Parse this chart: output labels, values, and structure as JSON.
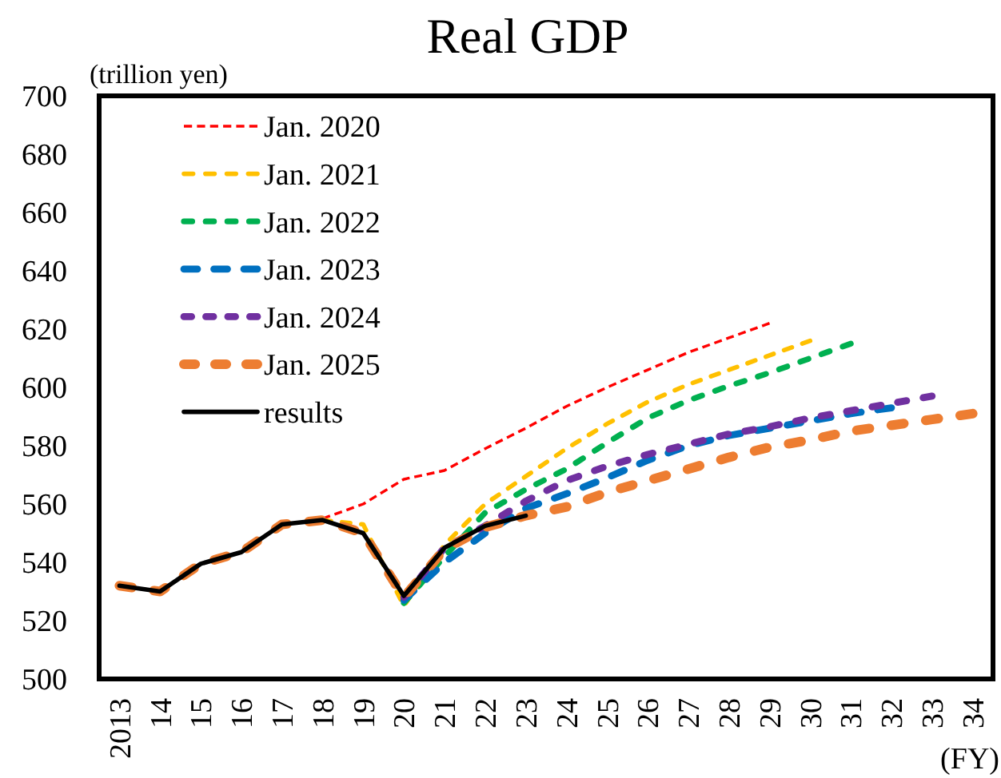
{
  "chart_data": {
    "type": "line",
    "title": "Real GDP",
    "xlabel": "(FY)",
    "ylabel": "(trillion yen)",
    "categories": [
      "2013",
      "14",
      "15",
      "16",
      "17",
      "18",
      "19",
      "20",
      "21",
      "22",
      "23",
      "24",
      "25",
      "26",
      "27",
      "28",
      "29",
      "30",
      "31",
      "32",
      "33",
      "34"
    ],
    "ylim": [
      500,
      700
    ],
    "yticks": [
      500,
      520,
      540,
      560,
      580,
      600,
      620,
      640,
      660,
      680,
      700
    ],
    "grid": false,
    "legend": "top left",
    "series": [
      {
        "name": "Jan. 2020",
        "color": "#ff0000",
        "line_style": "dotted",
        "values": [
          null,
          null,
          null,
          null,
          null,
          555,
          560,
          568.5,
          571.5,
          579,
          586,
          593.5,
          600,
          606,
          612,
          617,
          622,
          null,
          null,
          null,
          null,
          null
        ]
      },
      {
        "name": "Jan. 2021",
        "color": "#ffc000",
        "line_style": "dashed",
        "values": [
          null,
          null,
          null,
          null,
          null,
          554.5,
          553,
          525,
          546,
          560,
          569.5,
          579,
          587.5,
          595,
          601,
          606,
          611,
          616,
          null,
          null,
          null,
          null
        ]
      },
      {
        "name": "Jan. 2022",
        "color": "#00b050",
        "line_style": "dashed",
        "values": [
          null,
          null,
          null,
          null,
          null,
          null,
          null,
          526,
          542,
          557,
          565,
          572,
          581,
          589.5,
          595.5,
          600.5,
          605,
          610,
          615,
          null,
          null,
          null
        ]
      },
      {
        "name": "Jan. 2023",
        "color": "#0070c0",
        "line_style": "dashed",
        "values": [
          null,
          null,
          null,
          null,
          null,
          null,
          null,
          527,
          540,
          550,
          558.5,
          563.5,
          569,
          575,
          580,
          583.5,
          586,
          588.5,
          591,
          593,
          null,
          null
        ]
      },
      {
        "name": "Jan. 2024",
        "color": "#7030a0",
        "line_style": "dashed",
        "values": [
          null,
          null,
          null,
          null,
          null,
          null,
          null,
          528,
          545,
          552.5,
          561,
          568,
          573,
          577,
          580.5,
          584,
          586.5,
          589.5,
          592,
          594.5,
          597,
          null
        ]
      },
      {
        "name": "Jan. 2025",
        "color": "#ed7d31",
        "line_style": "dashed",
        "values": [
          532,
          530,
          539.5,
          543.5,
          553,
          554.5,
          550,
          528,
          544.5,
          552,
          556,
          559,
          564,
          568,
          572,
          576,
          579.5,
          582,
          585,
          587,
          589,
          591
        ]
      },
      {
        "name": "results",
        "color": "#000000",
        "line_style": "solid",
        "values": [
          532,
          530,
          539.5,
          543.5,
          553,
          554.5,
          550,
          528.5,
          545,
          552.5,
          556,
          null,
          null,
          null,
          null,
          null,
          null,
          null,
          null,
          null,
          null,
          null
        ]
      }
    ]
  }
}
